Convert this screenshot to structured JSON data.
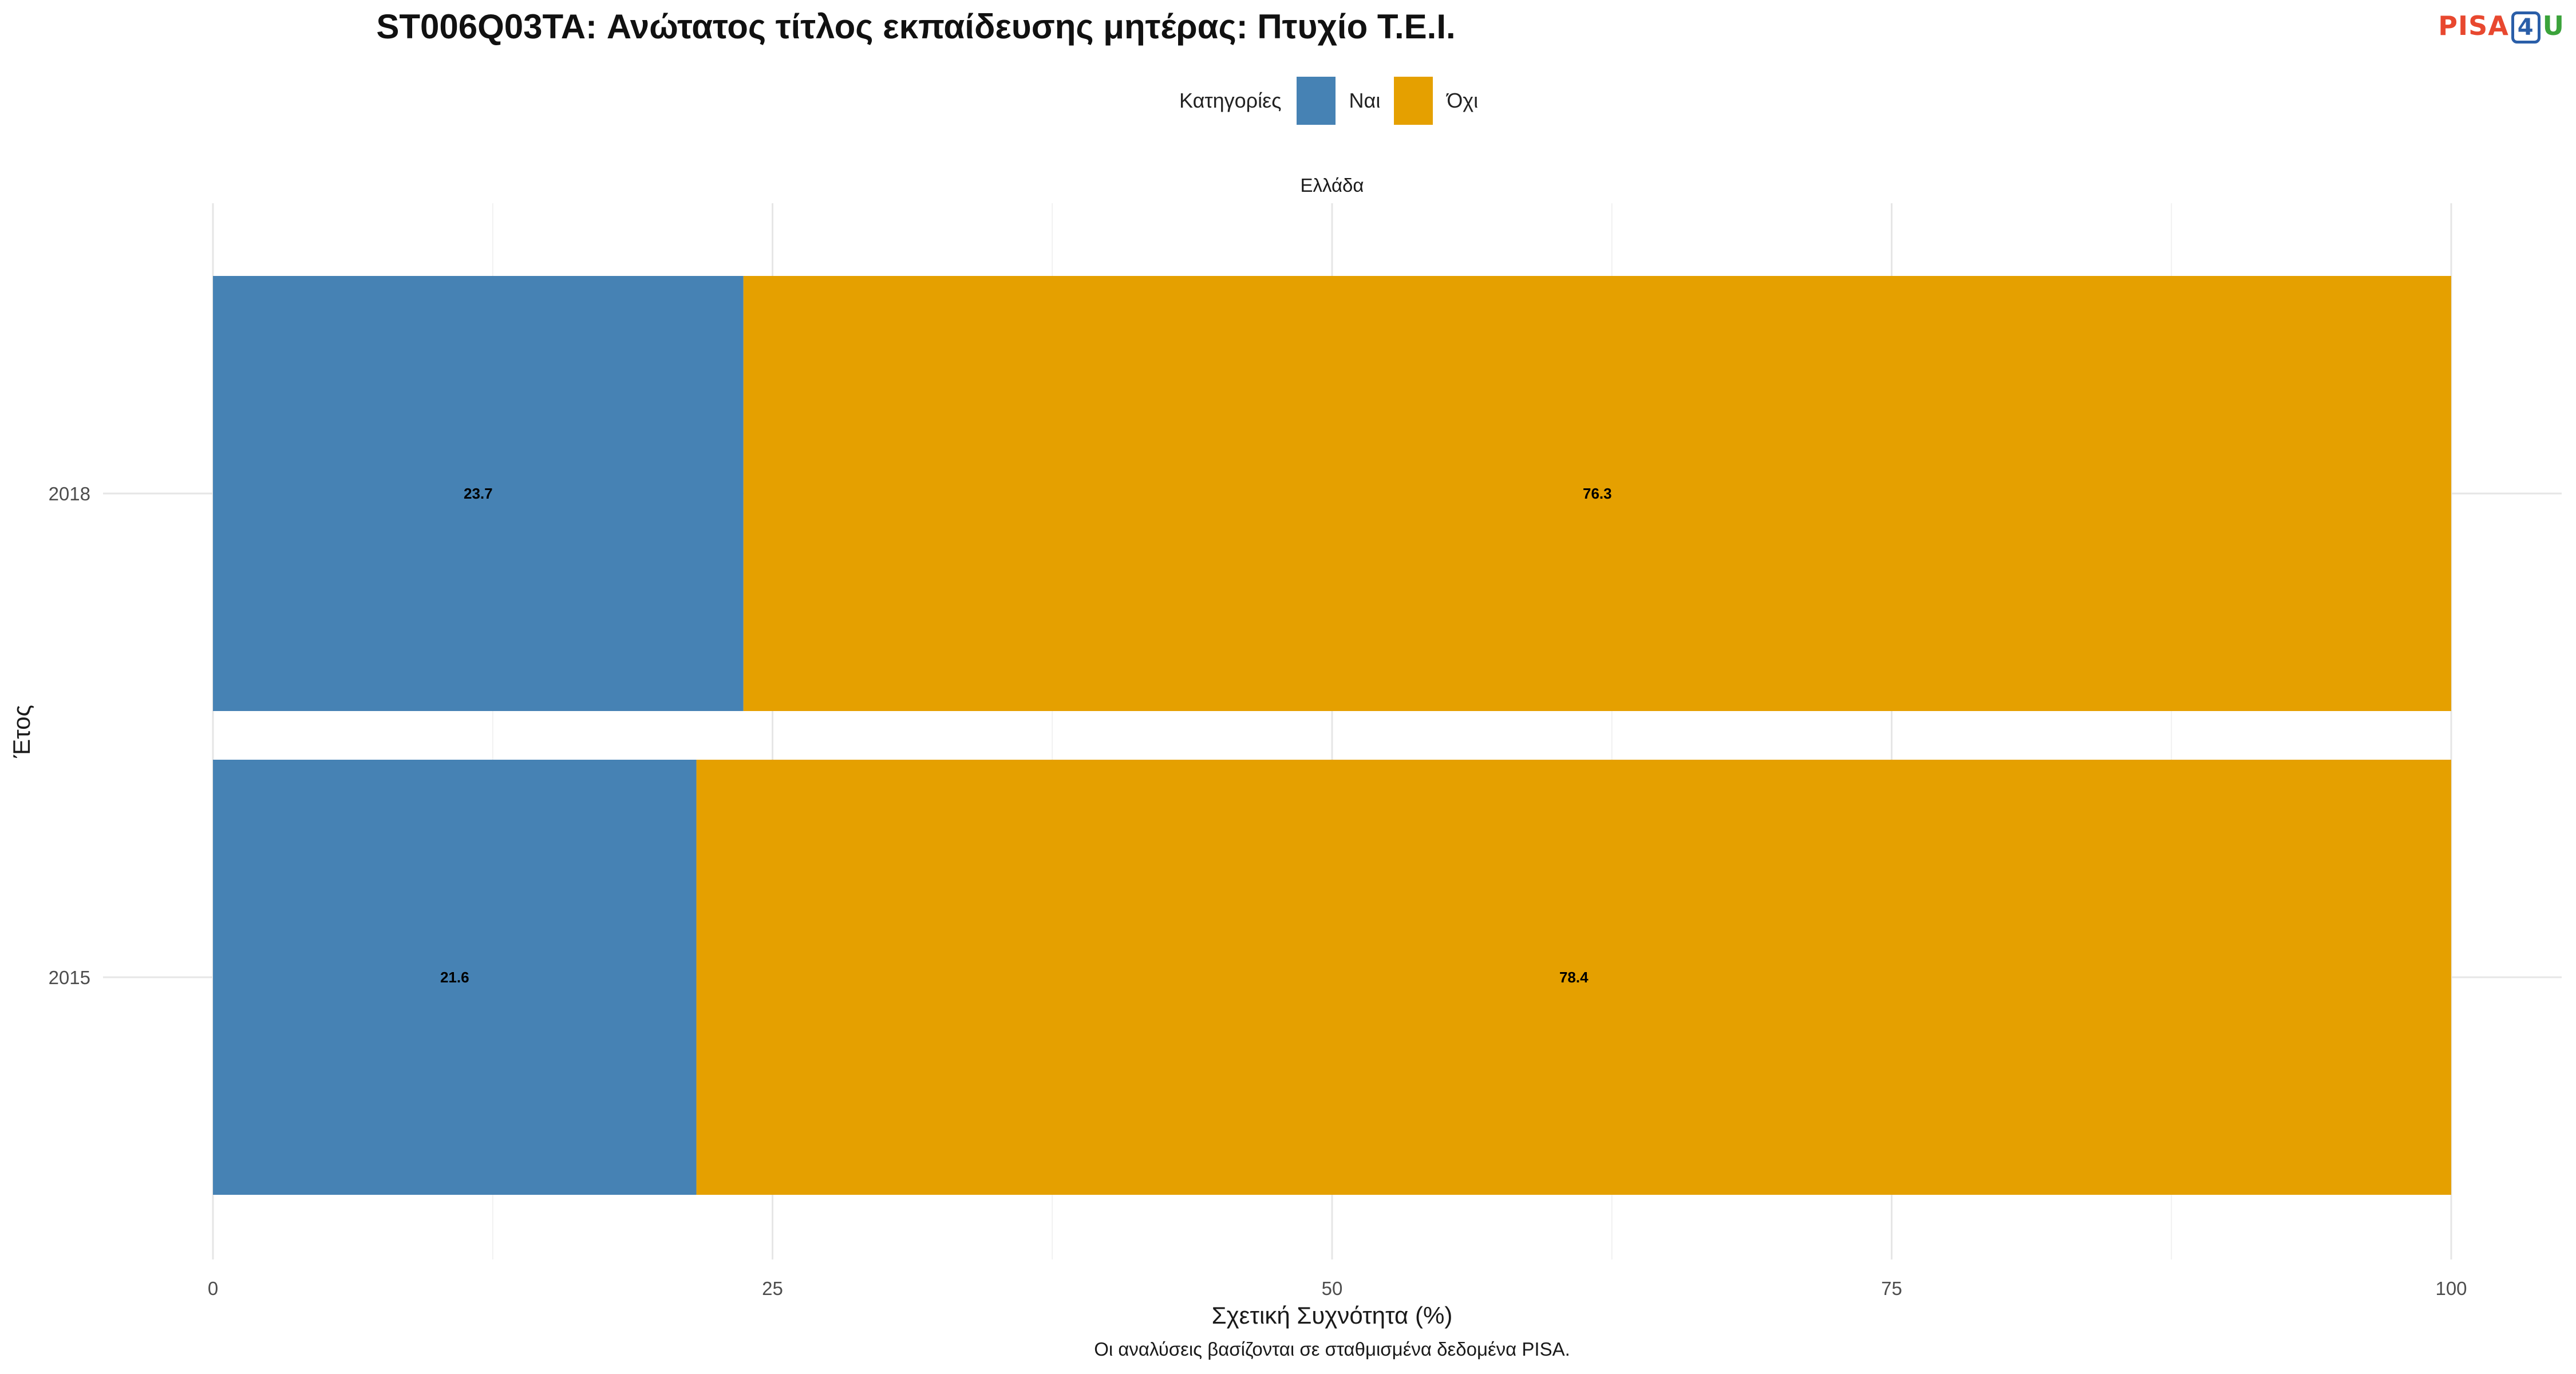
{
  "chart_data": {
    "type": "bar",
    "orientation": "horizontal",
    "stacked": true,
    "title": "ST006Q03TA: Ανώτατος τίτλος εκπαίδευσης μητέρας: Πτυχίο Τ.Ε.Ι.",
    "facet": "Ελλάδα",
    "categories": [
      "2018",
      "2015"
    ],
    "series": [
      {
        "name": "Ναι",
        "values": [
          23.7,
          21.6
        ],
        "color": "#4682b4"
      },
      {
        "name": "Όχι",
        "values": [
          76.3,
          78.4
        ],
        "color": "#e5a000"
      }
    ],
    "xlabel": "Σχετική Συχνότητα (%)",
    "ylabel": "Έτος",
    "xlim": [
      0,
      100
    ],
    "xticks": [
      0,
      25,
      50,
      75,
      100
    ],
    "legend": {
      "title": "Κατηγορίες",
      "position": "top"
    },
    "grid": true,
    "caption": "Οι αναλύσεις βασίζονται σε σταθμισμένα δεδομένα PISA."
  },
  "logo": {
    "part1": "PISA",
    "part2": "4",
    "part3": "U"
  }
}
